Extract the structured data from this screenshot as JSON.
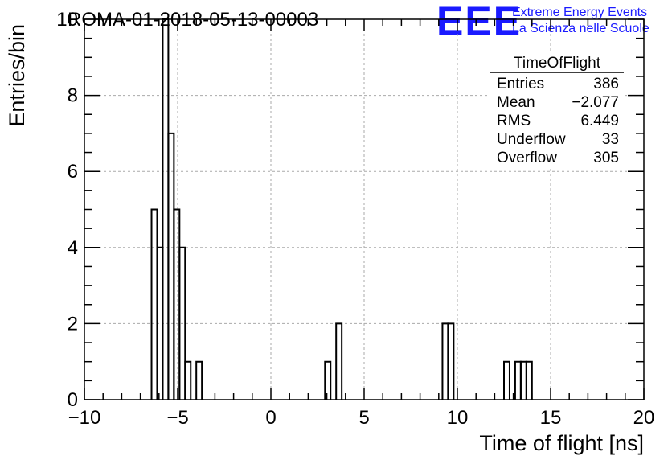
{
  "header": {
    "run_title": "ROMA-01-2018-05-13-00003",
    "logo_text": "EEE",
    "logo_line1": "Extreme Energy Events",
    "logo_line2": "La Scienza nelle Scuole"
  },
  "stats_box": {
    "title": "TimeOfFlight",
    "rows": [
      {
        "label": "Entries",
        "value": "386"
      },
      {
        "label": "Mean",
        "value": "−2.077"
      },
      {
        "label": "RMS",
        "value": "6.449"
      },
      {
        "label": "Underflow",
        "value": "33"
      },
      {
        "label": "Overflow",
        "value": "305"
      }
    ]
  },
  "colors": {
    "histogram_line": "#000000",
    "grid": "#aaaaaa",
    "logo": "#1a1aff"
  },
  "chart_data": {
    "type": "histogram",
    "xlabel": "Time of flight [ns]",
    "ylabel": "Entries/bin",
    "xlim": [
      -10,
      20
    ],
    "ylim": [
      0,
      10
    ],
    "grid": true,
    "bin_width": 0.3,
    "x_ticks": [
      -10,
      -5,
      0,
      5,
      10,
      15,
      20
    ],
    "x_tick_labels": [
      "−10",
      "−5",
      "0",
      "5",
      "10",
      "15",
      "20"
    ],
    "y_ticks": [
      0,
      2,
      4,
      6,
      8,
      10
    ],
    "y_tick_labels": [
      "0",
      "2",
      "4",
      "6",
      "8",
      "10"
    ],
    "bins": [
      {
        "x_low": -6.4,
        "x_high": -6.1,
        "count": 5
      },
      {
        "x_low": -6.1,
        "x_high": -5.8,
        "count": 4
      },
      {
        "x_low": -5.8,
        "x_high": -5.5,
        "count": 10
      },
      {
        "x_low": -5.5,
        "x_high": -5.2,
        "count": 7
      },
      {
        "x_low": -5.2,
        "x_high": -4.9,
        "count": 5
      },
      {
        "x_low": -4.9,
        "x_high": -4.6,
        "count": 4
      },
      {
        "x_low": -4.6,
        "x_high": -4.3,
        "count": 1
      },
      {
        "x_low": -4.0,
        "x_high": -3.7,
        "count": 1
      },
      {
        "x_low": 2.9,
        "x_high": 3.2,
        "count": 1
      },
      {
        "x_low": 3.5,
        "x_high": 3.8,
        "count": 2
      },
      {
        "x_low": 9.2,
        "x_high": 9.5,
        "count": 2
      },
      {
        "x_low": 9.5,
        "x_high": 9.8,
        "count": 2
      },
      {
        "x_low": 12.5,
        "x_high": 12.8,
        "count": 1
      },
      {
        "x_low": 13.1,
        "x_high": 13.4,
        "count": 1
      },
      {
        "x_low": 13.4,
        "x_high": 13.7,
        "count": 1
      },
      {
        "x_low": 13.7,
        "x_high": 14.0,
        "count": 1
      }
    ]
  }
}
